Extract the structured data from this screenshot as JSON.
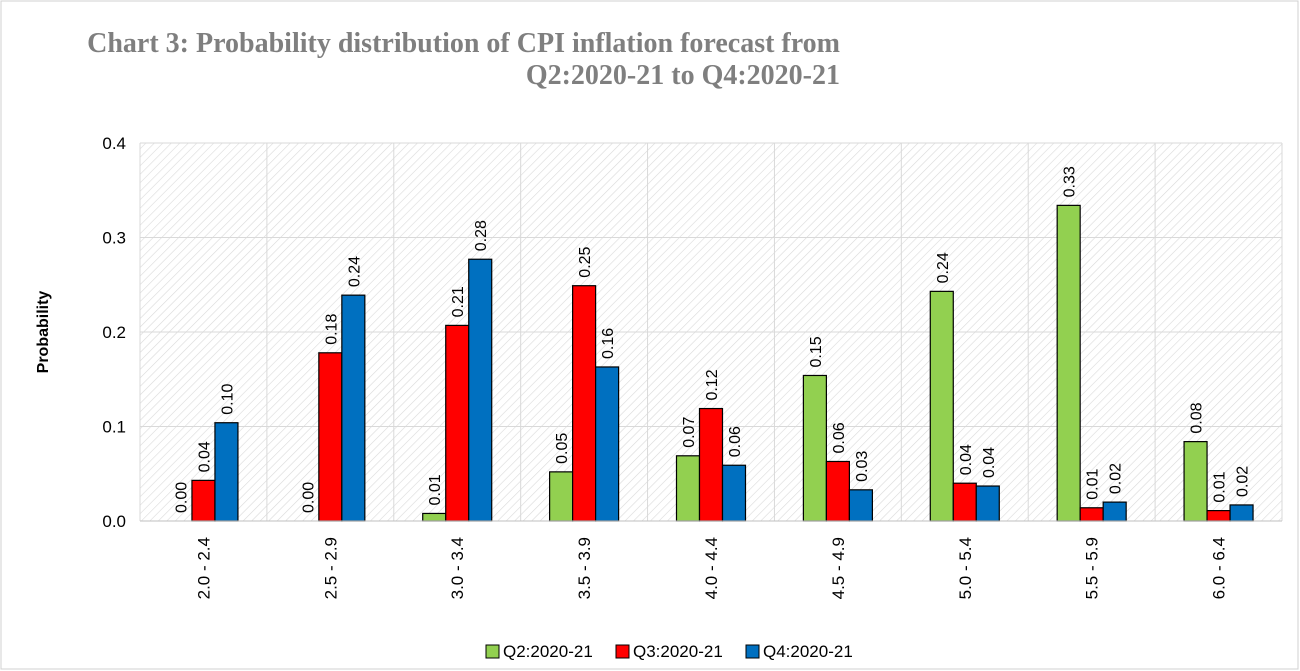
{
  "chart_data": {
    "type": "bar",
    "title": "Chart 3: Probability distribution of  CPI inflation forecast from\nQ2:2020-21 to Q4:2020-21",
    "y_label": "Probability",
    "categories": [
      "2.0 - 2.4",
      "2.5 - 2.9",
      "3.0 - 3.4",
      "3.5 - 3.9",
      "4.0 - 4.4",
      "4.5 - 4.9",
      "5.0 - 5.4",
      "5.5 - 5.9",
      "6.0 - 6.4"
    ],
    "series": [
      {
        "name": "Q2:2020-21",
        "color": "#92d050",
        "values": [
          0,
          0,
          0.008,
          0.052,
          0.069,
          0.154,
          0.243,
          0.334,
          0.084
        ],
        "value_labels": [
          "0.00",
          "0.00",
          "0.01",
          "0.05",
          "0.07",
          "0.15",
          "0.24",
          "0.33",
          "0.08"
        ]
      },
      {
        "name": "Q3:2020-21",
        "color": "#ff0000",
        "values": [
          0.043,
          0.178,
          0.207,
          0.249,
          0.119,
          0.063,
          0.04,
          0.014,
          0.011
        ],
        "value_labels": [
          "0.04",
          "0.18",
          "0.21",
          "0.25",
          "0.12",
          "0.06",
          "0.04",
          "0.01",
          "0.01"
        ]
      },
      {
        "name": "Q4:2020-21",
        "color": "#0070c0",
        "values": [
          0.104,
          0.239,
          0.277,
          0.163,
          0.059,
          0.033,
          0.037,
          0.02,
          0.017
        ],
        "value_labels": [
          "0.10",
          "0.24",
          "0.28",
          "0.16",
          "0.06",
          "0.03",
          "0.04",
          "0.02",
          "0.02"
        ]
      }
    ],
    "ylim": [
      0,
      0.4
    ],
    "yticks": [
      {
        "value": 0,
        "label": "0.0"
      },
      0.1,
      0.2,
      0.3,
      0.4
    ],
    "grid": true,
    "legend": "bottom"
  }
}
